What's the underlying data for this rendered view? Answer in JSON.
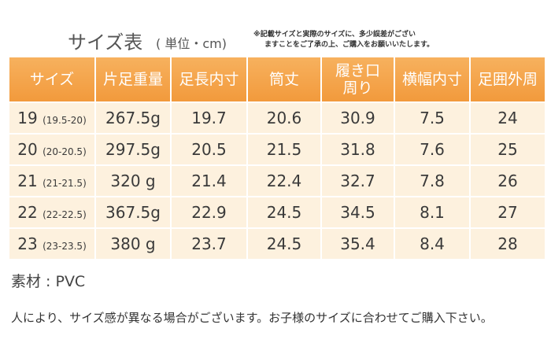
{
  "title": "サイズ表",
  "unit": "( 単位・cm)",
  "note": [
    "※記載サイズと実際のサイズに、多少誤差がござい",
    "ますことをご了承の上、ご購入をお願いいたします。"
  ],
  "table": {
    "header": [
      "サイズ",
      "片足重量",
      "足長内寸",
      "筒丈",
      [
        "履き口",
        "周り"
      ],
      "横幅内寸",
      "足囲外周"
    ],
    "rows": [
      [
        [
          "19",
          "(19.5-20)"
        ],
        "267.5g",
        "19.7",
        "20.6",
        "30.9",
        "7.5",
        "24"
      ],
      [
        [
          "20",
          "(20-20.5)"
        ],
        "297.5g",
        "20.5",
        "21.5",
        "31.8",
        "7.6",
        "25"
      ],
      [
        [
          "21",
          "(21-21.5)"
        ],
        "320 g",
        "21.4",
        "22.4",
        "32.7",
        "7.8",
        "26"
      ],
      [
        [
          "22",
          "(22-22.5)"
        ],
        "367.5g",
        "22.9",
        "24.5",
        "34.5",
        "8.1",
        "27"
      ],
      [
        [
          "23",
          "(23-23.5)"
        ],
        "380 g",
        "23.7",
        "24.5",
        "35.4",
        "8.4",
        "28"
      ]
    ]
  },
  "material": "素材 : PVC",
  "footer": "人により、サイズ感が異なる場合がございます。お子様のサイズに合わせてご購入下さい。"
}
